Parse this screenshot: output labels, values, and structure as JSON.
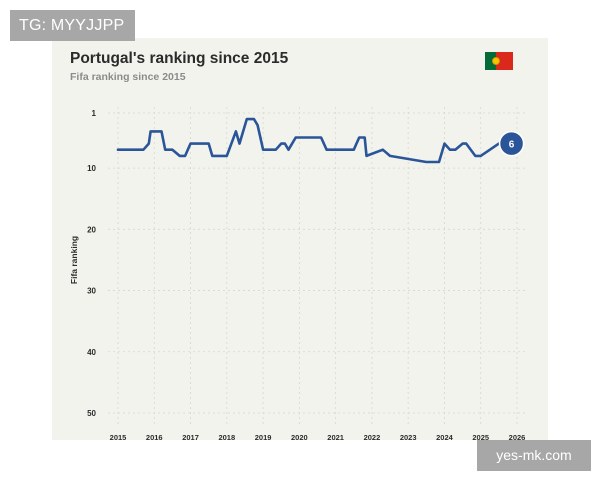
{
  "badge": {
    "text": "TG: MYYJJPP"
  },
  "watermark": {
    "text": "yes-mk.com"
  },
  "flag": {
    "name": "portugal-flag",
    "colors": {
      "green": "#046a38",
      "red": "#da291c",
      "seal": "#f5c400"
    }
  },
  "colors": {
    "line": "#2a5599",
    "marker": "#2a5599",
    "grid": "#d7d7cf",
    "card_bg": "#f3f3ee",
    "axis_text": "#2b2b2b"
  },
  "chart_data": {
    "type": "line",
    "title": "Portugal's ranking since 2015",
    "subtitle": "Fifa ranking since 2015",
    "xlabel": "",
    "ylabel": "Fifa ranking",
    "xlim": [
      2015,
      2026
    ],
    "ylim": [
      1,
      50
    ],
    "y_inverted": true,
    "grid": true,
    "x_ticks": [
      "2015",
      "2016",
      "2017",
      "2018",
      "2019",
      "2020",
      "2021",
      "2022",
      "2023",
      "2024",
      "2025",
      "2026"
    ],
    "y_ticks": [
      "1",
      "10",
      "20",
      "30",
      "40",
      "50"
    ],
    "x_tick_values": [
      2015,
      2016,
      2017,
      2018,
      2019,
      2020,
      2021,
      2022,
      2023,
      2024,
      2025,
      2026
    ],
    "y_tick_values": [
      1,
      10,
      20,
      30,
      40,
      50
    ],
    "series": [
      {
        "name": "",
        "x": [
          2015.0,
          2015.45,
          2015.6,
          2015.7,
          2015.85,
          2015.9,
          2016.2,
          2016.3,
          2016.5,
          2016.7,
          2016.85,
          2017.0,
          2017.5,
          2017.6,
          2017.65,
          2017.75,
          2017.85,
          2018.0,
          2018.25,
          2018.35,
          2018.55,
          2018.75,
          2018.85,
          2019.0,
          2019.35,
          2019.5,
          2019.6,
          2019.7,
          2019.9,
          2020.6,
          2020.75,
          2021.5,
          2021.65,
          2021.7,
          2021.8,
          2021.85,
          2022.3,
          2022.5,
          2023.5,
          2023.75,
          2023.85,
          2024.0,
          2024.15,
          2024.3,
          2024.5,
          2024.6,
          2024.85,
          2025.0,
          2025.5,
          2025.75,
          2025.85
        ],
        "y": [
          7,
          7,
          7,
          7,
          6,
          4,
          4,
          7,
          7,
          8,
          8,
          6,
          6,
          8,
          8,
          8,
          8,
          8,
          4,
          6,
          2,
          2,
          3,
          7,
          7,
          6,
          6,
          7,
          5,
          5,
          7,
          7,
          5,
          5,
          5,
          8,
          7,
          8,
          9,
          9,
          9,
          6,
          7,
          7,
          6,
          6,
          8,
          8,
          6,
          6,
          6
        ],
        "end_label": "6"
      }
    ],
    "annotations": [
      {
        "text": "6",
        "x": 2025.85,
        "y": 6
      }
    ]
  }
}
